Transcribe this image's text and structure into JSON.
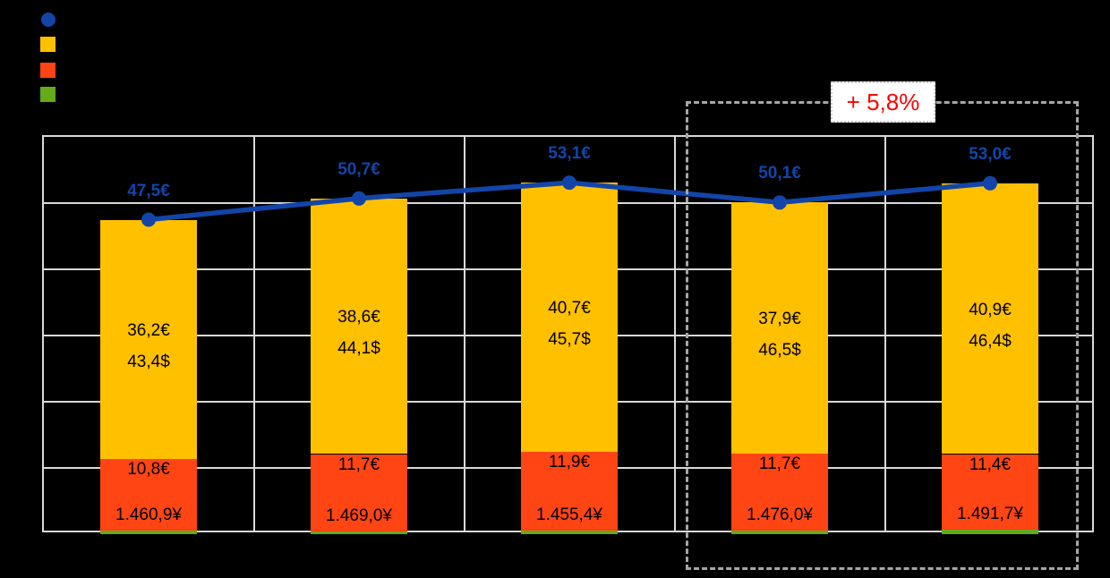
{
  "annotation": {
    "label": "+ 5,8%",
    "color": "#FF0000"
  },
  "legend": {
    "items": [
      {
        "name": "total-line",
        "shape": "circle",
        "color": "#1345A8"
      },
      {
        "name": "segment-yellow",
        "shape": "square",
        "color": "#FFC000"
      },
      {
        "name": "segment-orange",
        "shape": "square",
        "color": "#FF4513"
      },
      {
        "name": "segment-green",
        "shape": "square",
        "color": "#64AA19"
      }
    ]
  },
  "chart_data": {
    "type": "bar",
    "subtype": "stacked-bars-with-line-overlay",
    "title": "",
    "xlabel": "",
    "ylabel": "",
    "ylim": [
      0,
      60
    ],
    "y_gridline_step": 10,
    "grid": true,
    "n_periods": 5,
    "line_series": {
      "name": "total",
      "color": "#1345A8",
      "values": [
        47.5,
        50.7,
        53.1,
        50.1,
        53.0
      ],
      "labels": [
        "47,5€",
        "50,7€",
        "53,1€",
        "50,1€",
        "53,0€"
      ]
    },
    "stack_series": [
      {
        "name": "green",
        "color": "#64AA19",
        "values": [
          0.5,
          0.4,
          0.5,
          0.5,
          0.7
        ]
      },
      {
        "name": "orange",
        "color": "#FF4513",
        "values": [
          10.8,
          11.7,
          11.9,
          11.7,
          11.4
        ],
        "labels_primary": [
          "10,8€",
          "11,7€",
          "11,9€",
          "11,7€",
          "11,4€"
        ],
        "labels_secondary": [
          "1.460,9¥",
          "1.469,0¥",
          "1.455,4¥",
          "1.476,0¥",
          "1.491,7¥"
        ]
      },
      {
        "name": "yellow",
        "color": "#FFC000",
        "values": [
          36.2,
          38.6,
          40.7,
          37.9,
          40.9
        ],
        "labels_primary": [
          "36,2€",
          "38,6€",
          "40,7€",
          "37,9€",
          "40,9€"
        ],
        "labels_secondary": [
          "43,4$",
          "44,1$",
          "45,7$",
          "46,5$",
          "46,4$"
        ]
      }
    ],
    "highlight": {
      "label": "+ 5,8%",
      "covers_last_n_periods": 2
    },
    "colors": {
      "gridline": "#D9D9D9",
      "highlight_box_border": "#A6A6A6",
      "annotation_text": "#FF0000",
      "background": "#000000"
    }
  }
}
